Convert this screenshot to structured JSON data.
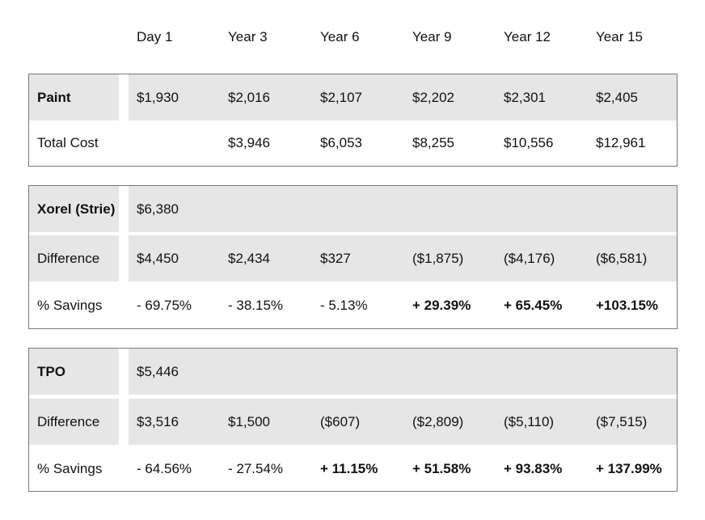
{
  "header": [
    "Day 1",
    "Year 3",
    "Year 6",
    "Year 9",
    "Year 12",
    "Year 15"
  ],
  "sections": [
    {
      "id": "paint",
      "rows": [
        {
          "label": "Paint",
          "label_bold": true,
          "shaded": true,
          "values": [
            "$1,930",
            "$2,016",
            "$2,107",
            "$2,202",
            "$2,301",
            "$2,405"
          ],
          "bold": [
            false,
            false,
            false,
            false,
            false,
            false
          ]
        },
        {
          "label": "Total Cost",
          "label_bold": false,
          "shaded": false,
          "values": [
            "",
            "$3,946",
            "$6,053",
            "$8,255",
            "$10,556",
            "$12,961"
          ],
          "bold": [
            false,
            false,
            false,
            false,
            false,
            false
          ]
        }
      ]
    },
    {
      "id": "xorel",
      "rows": [
        {
          "label": "Xorel (Strie)",
          "label_bold": true,
          "shaded": true,
          "values": [
            "$6,380",
            "",
            "",
            "",
            "",
            ""
          ],
          "bold": [
            false,
            false,
            false,
            false,
            false,
            false
          ]
        },
        {
          "label": "Difference",
          "label_bold": false,
          "shaded": true,
          "values": [
            "$4,450",
            "$2,434",
            "$327",
            "($1,875)",
            "($4,176)",
            "($6,581)"
          ],
          "bold": [
            false,
            false,
            false,
            false,
            false,
            false
          ]
        },
        {
          "label": "% Savings",
          "label_bold": false,
          "shaded": false,
          "values": [
            "- 69.75%",
            "- 38.15%",
            "- 5.13%",
            "+ 29.39%",
            "+ 65.45%",
            "+103.15%"
          ],
          "bold": [
            false,
            false,
            false,
            true,
            true,
            true
          ]
        }
      ]
    },
    {
      "id": "tpo",
      "rows": [
        {
          "label": "TPO",
          "label_bold": true,
          "shaded": true,
          "values": [
            "$5,446",
            "",
            "",
            "",
            "",
            ""
          ],
          "bold": [
            false,
            false,
            false,
            false,
            false,
            false
          ]
        },
        {
          "label": "Difference",
          "label_bold": false,
          "shaded": true,
          "values": [
            "$3,516",
            "$1,500",
            "($607)",
            "($2,809)",
            "($5,110)",
            "($7,515)"
          ],
          "bold": [
            false,
            false,
            false,
            false,
            false,
            false
          ]
        },
        {
          "label": "% Savings",
          "label_bold": false,
          "shaded": false,
          "values": [
            "- 64.56%",
            "- 27.54%",
            "+ 11.15%",
            "+ 51.58%",
            "+ 93.83%",
            "+ 137.99%"
          ],
          "bold": [
            false,
            false,
            true,
            true,
            true,
            true
          ]
        }
      ]
    }
  ]
}
